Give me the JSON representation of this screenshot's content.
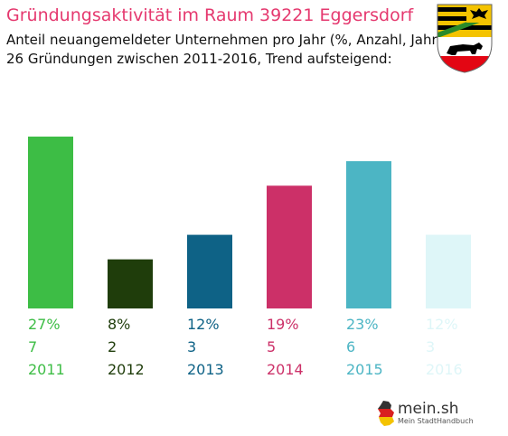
{
  "header": {
    "title": "Gründungsaktivität im Raum 39221 Eggersdorf",
    "subtitle_line1": "Anteil neuangemeldeter Unternehmen pro Jahr (%, Anzahl, Jahr)",
    "subtitle_line2": "26 Gründungen zwischen 2011-2016, Trend aufsteigend:"
  },
  "chart_data": {
    "type": "bar",
    "categories": [
      "2011",
      "2012",
      "2013",
      "2014",
      "2015",
      "2016"
    ],
    "values": [
      7,
      2,
      3,
      5,
      6,
      3
    ],
    "percent_labels": [
      "27%",
      "8%",
      "12%",
      "19%",
      "23%",
      "12%"
    ],
    "count_labels": [
      "7",
      "2",
      "3",
      "5",
      "6",
      "3"
    ],
    "colors": [
      "#3dbd45",
      "#1f3d0b",
      "#0e6286",
      "#cc3068",
      "#4cb5c4",
      "#def6f8"
    ],
    "ylim": [
      0,
      7
    ],
    "grid": false,
    "legend": "none"
  },
  "logo": {
    "name": "mein.sh",
    "tagline": "Mein StadtHandbuch"
  },
  "crest": {
    "icon": "saxony-anhalt-coat-of-arms-icon",
    "colors": [
      "#000000",
      "#f4c300",
      "#e30613",
      "#2a8a2a"
    ]
  }
}
